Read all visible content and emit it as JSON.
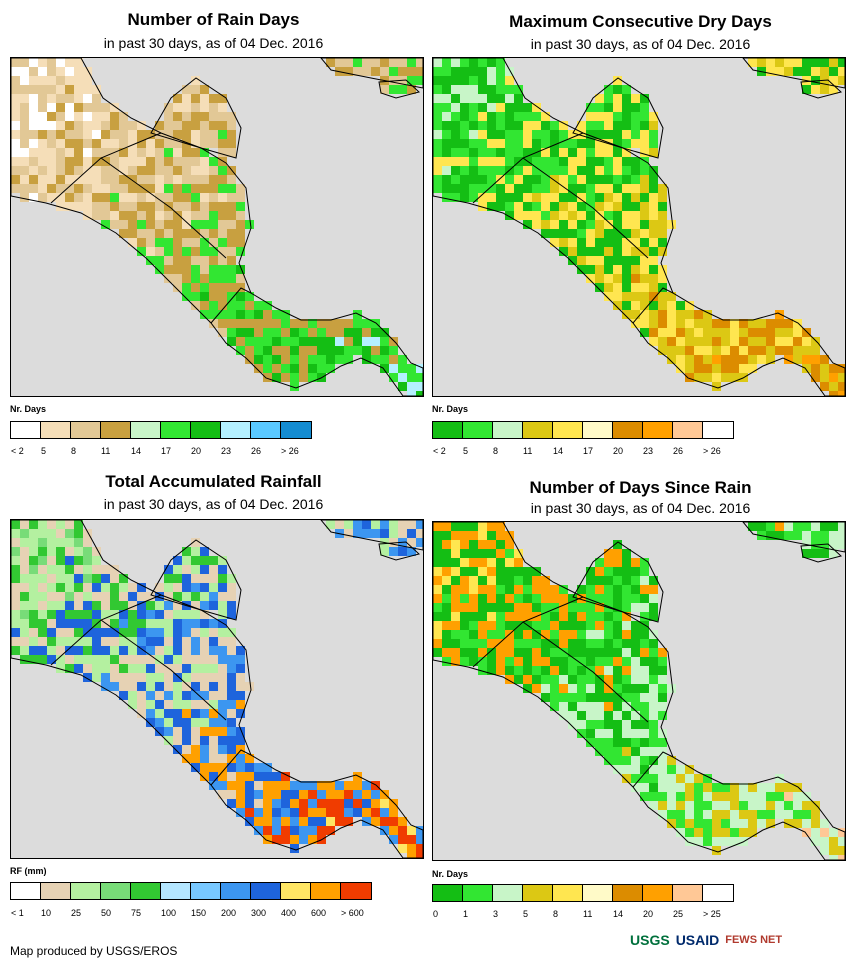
{
  "panels": [
    {
      "title": "Number of Rain Days",
      "subtitle": "in past 30 days, as of 04 Dec. 2016",
      "legend_title": "Nr. Days",
      "legend_colors": [
        "#ffffff",
        "#f5deb8",
        "#e2c896",
        "#c8a040",
        "#c8f5c8",
        "#32e632",
        "#14be14",
        "#b4f0ff",
        "#5ac8ff",
        "#148cd2"
      ],
      "legend_labels": [
        "< 2",
        "5",
        "8",
        "11",
        "14",
        "17",
        "20",
        "23",
        "26",
        "> 26"
      ],
      "palette": [
        "#ffffff",
        "#f5deb8",
        "#e2c896",
        "#c8a040",
        "#32e632",
        "#14be14",
        "#b4f0ff"
      ]
    },
    {
      "title": "Maximum Consecutive Dry Days",
      "subtitle": "in past 30 days, as of 04 Dec. 2016",
      "legend_title": "Nr. Days",
      "legend_colors": [
        "#14be14",
        "#32e632",
        "#c8f5c8",
        "#dcc814",
        "#ffe650",
        "#fffac8",
        "#dc8c00",
        "#ffa000",
        "#ffc896",
        "#ffffff"
      ],
      "legend_labels": [
        "< 2",
        "5",
        "8",
        "11",
        "14",
        "17",
        "20",
        "23",
        "26",
        "> 26"
      ],
      "palette": [
        "#c8f5c8",
        "#32e632",
        "#14be14",
        "#ffe650",
        "#dcc814",
        "#dc8c00",
        "#ffa000"
      ]
    },
    {
      "title": "Total Accumulated Rainfall",
      "subtitle": "in past 30 days, as of 04 Dec. 2016",
      "legend_title": "RF (mm)",
      "legend_colors": [
        "#ffffff",
        "#e6d2b4",
        "#b4f0a0",
        "#78dc78",
        "#32c832",
        "#b4e6ff",
        "#78c8ff",
        "#3c96f0",
        "#1e64dc",
        "#ffe664",
        "#ffa000",
        "#f03c00"
      ],
      "legend_labels": [
        "< 1",
        "10",
        "25",
        "50",
        "75",
        "100",
        "150",
        "200",
        "300",
        "400",
        "600",
        "> 600"
      ],
      "palette": [
        "#78dc78",
        "#32c832",
        "#b4f0a0",
        "#e6d2b4",
        "#1e64dc",
        "#3c96f0",
        "#ffa000",
        "#f03c00",
        "#ffe664"
      ]
    },
    {
      "title": "Number of Days Since Rain",
      "subtitle": "in past 30 days, as of 04 Dec. 2016",
      "legend_title": "Nr. Days",
      "legend_colors": [
        "#14be14",
        "#32e632",
        "#c8f5c8",
        "#dcc814",
        "#ffe650",
        "#fffac8",
        "#dc8c00",
        "#ffa000",
        "#ffc896",
        "#ffffff"
      ],
      "legend_labels": [
        "0",
        "1",
        "3",
        "5",
        "8",
        "11",
        "14",
        "20",
        "25",
        "> 25"
      ],
      "palette": [
        "#ffe650",
        "#ffa000",
        "#14be14",
        "#32e632",
        "#c8f5c8",
        "#dcc814",
        "#ffc896"
      ]
    }
  ],
  "credit": "Map produced by USGS/EROS",
  "logos": [
    "USGS",
    "USAID",
    "FEWS NET"
  ],
  "colors": {
    "ocean": "#dcdcdc",
    "border": "#000000"
  }
}
